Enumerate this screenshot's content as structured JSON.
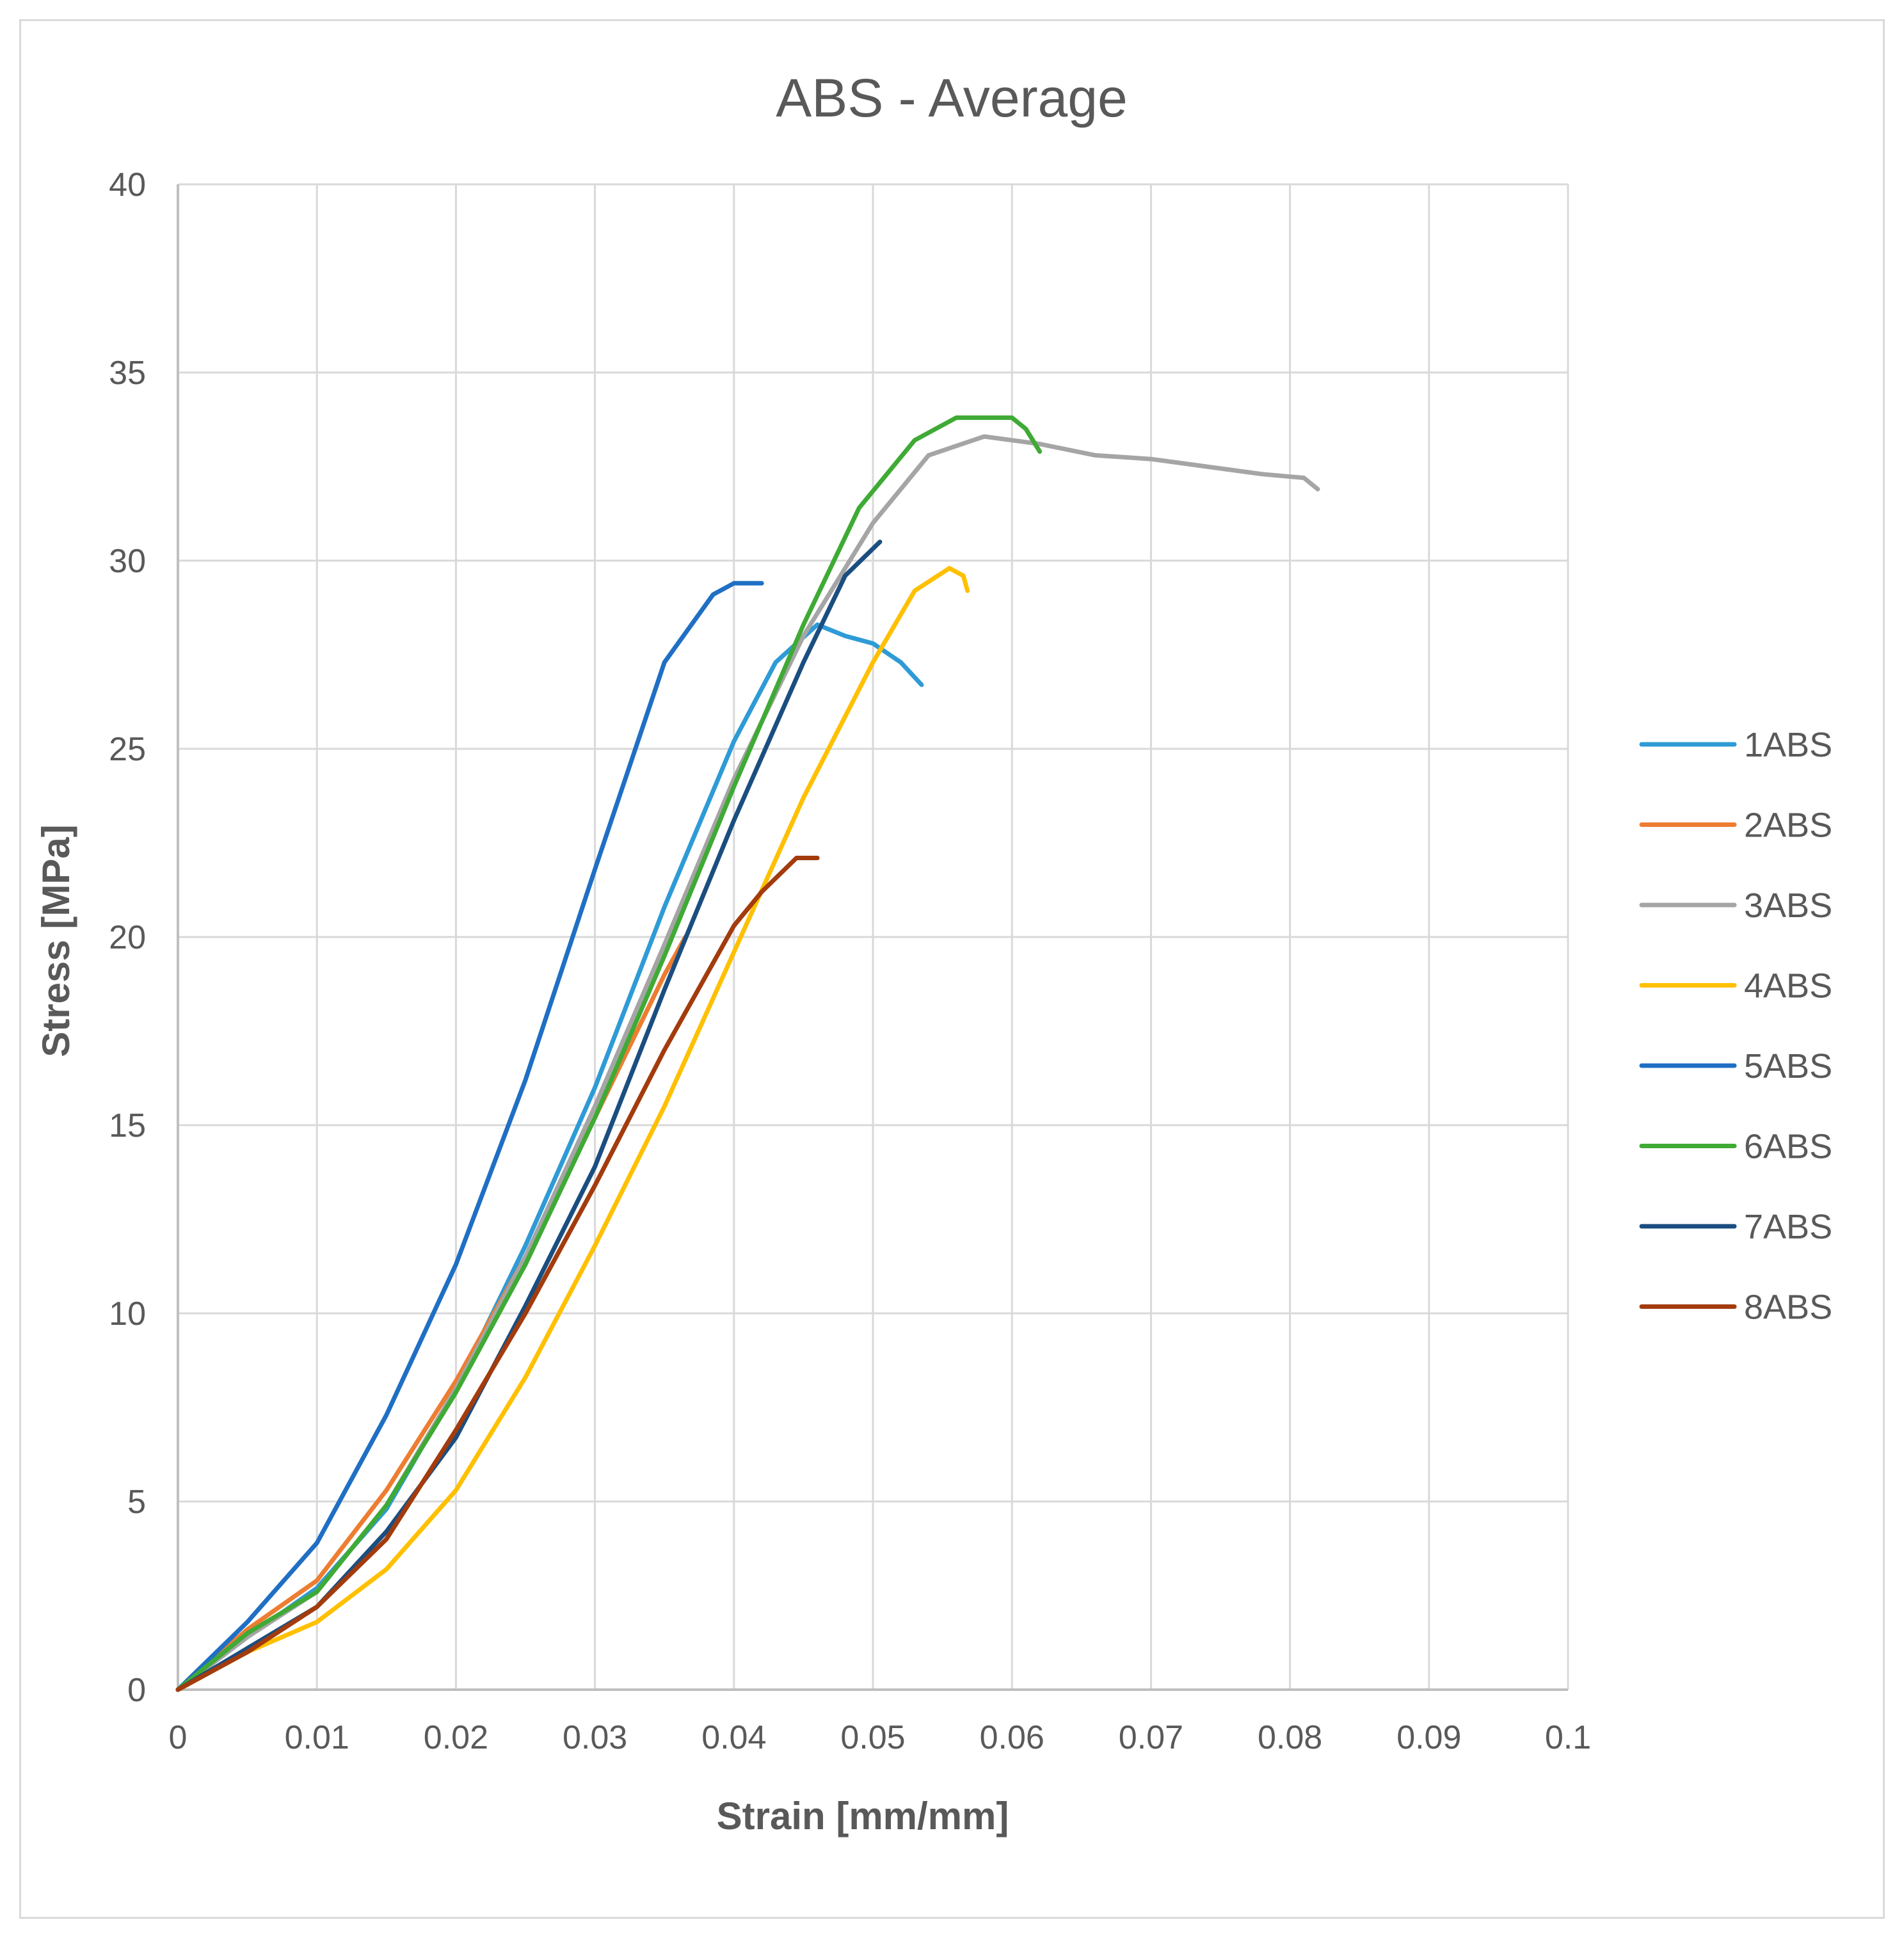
{
  "chart_data": {
    "type": "line",
    "title": "ABS - Average",
    "xlabel": "Strain [mm/mm]",
    "ylabel": "Stress [MPa]",
    "xlim": [
      0,
      0.1
    ],
    "ylim": [
      0,
      40
    ],
    "xticks": [
      0,
      0.01,
      0.02,
      0.03,
      0.04,
      0.05,
      0.06,
      0.07,
      0.08,
      0.09,
      0.1
    ],
    "xtick_labels": [
      "0",
      "0.01",
      "0.02",
      "0.03",
      "0.04",
      "0.05",
      "0.06",
      "0.07",
      "0.08",
      "0.09",
      "0.1"
    ],
    "yticks": [
      0,
      5,
      10,
      15,
      20,
      25,
      30,
      35,
      40
    ],
    "ytick_labels": [
      "0",
      "5",
      "10",
      "15",
      "20",
      "25",
      "30",
      "35",
      "40"
    ],
    "grid": true,
    "legend_position": "right",
    "series": [
      {
        "name": "1ABS",
        "color": "#2e9bd6",
        "points": [
          [
            0,
            0
          ],
          [
            0.005,
            1.4
          ],
          [
            0.01,
            2.7
          ],
          [
            0.015,
            4.8
          ],
          [
            0.02,
            8.0
          ],
          [
            0.025,
            11.8
          ],
          [
            0.03,
            16.0
          ],
          [
            0.035,
            20.8
          ],
          [
            0.04,
            25.2
          ],
          [
            0.043,
            27.3
          ],
          [
            0.046,
            28.3
          ],
          [
            0.048,
            28.0
          ],
          [
            0.05,
            27.8
          ],
          [
            0.052,
            27.3
          ],
          [
            0.0535,
            26.7
          ]
        ]
      },
      {
        "name": "2ABS",
        "color": "#ed7d31",
        "points": [
          [
            0,
            0
          ],
          [
            0.005,
            1.6
          ],
          [
            0.01,
            2.9
          ],
          [
            0.015,
            5.3
          ],
          [
            0.02,
            8.2
          ],
          [
            0.025,
            11.5
          ],
          [
            0.03,
            15.2
          ],
          [
            0.035,
            19.0
          ],
          [
            0.0365,
            20.0
          ]
        ]
      },
      {
        "name": "3ABS",
        "color": "#a5a5a5",
        "points": [
          [
            0,
            0
          ],
          [
            0.005,
            1.4
          ],
          [
            0.01,
            2.6
          ],
          [
            0.015,
            4.9
          ],
          [
            0.02,
            8.0
          ],
          [
            0.025,
            11.5
          ],
          [
            0.03,
            15.5
          ],
          [
            0.035,
            19.8
          ],
          [
            0.04,
            24.2
          ],
          [
            0.045,
            28.0
          ],
          [
            0.05,
            31.0
          ],
          [
            0.054,
            32.8
          ],
          [
            0.058,
            33.3
          ],
          [
            0.062,
            33.1
          ],
          [
            0.066,
            32.8
          ],
          [
            0.07,
            32.7
          ],
          [
            0.074,
            32.5
          ],
          [
            0.078,
            32.3
          ],
          [
            0.081,
            32.2
          ],
          [
            0.082,
            31.9
          ]
        ]
      },
      {
        "name": "4ABS",
        "color": "#ffc000",
        "points": [
          [
            0,
            0
          ],
          [
            0.005,
            1.0
          ],
          [
            0.01,
            1.8
          ],
          [
            0.015,
            3.2
          ],
          [
            0.02,
            5.3
          ],
          [
            0.025,
            8.3
          ],
          [
            0.03,
            11.8
          ],
          [
            0.035,
            15.5
          ],
          [
            0.04,
            19.6
          ],
          [
            0.045,
            23.7
          ],
          [
            0.05,
            27.3
          ],
          [
            0.053,
            29.2
          ],
          [
            0.0555,
            29.8
          ],
          [
            0.0565,
            29.6
          ],
          [
            0.0568,
            29.2
          ]
        ]
      },
      {
        "name": "5ABS",
        "color": "#1f6fc4",
        "points": [
          [
            0,
            0
          ],
          [
            0.005,
            1.8
          ],
          [
            0.01,
            3.9
          ],
          [
            0.015,
            7.3
          ],
          [
            0.02,
            11.3
          ],
          [
            0.025,
            16.2
          ],
          [
            0.03,
            21.8
          ],
          [
            0.035,
            27.3
          ],
          [
            0.0385,
            29.1
          ],
          [
            0.04,
            29.4
          ],
          [
            0.041,
            29.4
          ],
          [
            0.042,
            29.4
          ]
        ]
      },
      {
        "name": "6ABS",
        "color": "#3faa35",
        "points": [
          [
            0,
            0
          ],
          [
            0.005,
            1.5
          ],
          [
            0.01,
            2.6
          ],
          [
            0.015,
            4.9
          ],
          [
            0.02,
            7.9
          ],
          [
            0.025,
            11.3
          ],
          [
            0.03,
            15.2
          ],
          [
            0.035,
            19.5
          ],
          [
            0.04,
            24.0
          ],
          [
            0.045,
            28.3
          ],
          [
            0.049,
            31.4
          ],
          [
            0.053,
            33.2
          ],
          [
            0.056,
            33.8
          ],
          [
            0.06,
            33.8
          ],
          [
            0.061,
            33.5
          ],
          [
            0.062,
            32.9
          ]
        ]
      },
      {
        "name": "7ABS",
        "color": "#1b4e80",
        "points": [
          [
            0,
            0
          ],
          [
            0.005,
            1.1
          ],
          [
            0.01,
            2.2
          ],
          [
            0.015,
            4.2
          ],
          [
            0.02,
            6.7
          ],
          [
            0.025,
            10.2
          ],
          [
            0.03,
            13.9
          ],
          [
            0.035,
            18.6
          ],
          [
            0.04,
            23.1
          ],
          [
            0.045,
            27.3
          ],
          [
            0.048,
            29.6
          ],
          [
            0.0505,
            30.5
          ]
        ]
      },
      {
        "name": "8ABS",
        "color": "#a33b0c",
        "points": [
          [
            0,
            0
          ],
          [
            0.005,
            1.0
          ],
          [
            0.01,
            2.2
          ],
          [
            0.015,
            4.0
          ],
          [
            0.02,
            6.9
          ],
          [
            0.025,
            10.0
          ],
          [
            0.03,
            13.4
          ],
          [
            0.035,
            17.0
          ],
          [
            0.04,
            20.3
          ],
          [
            0.042,
            21.2
          ],
          [
            0.0445,
            22.1
          ],
          [
            0.046,
            22.1
          ]
        ]
      }
    ]
  }
}
